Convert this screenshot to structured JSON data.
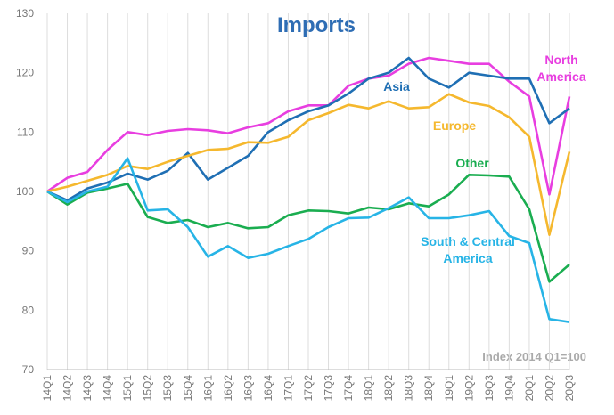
{
  "chart_data": {
    "type": "line",
    "title": "Imports",
    "annotation": "Index 2014 Q1=100",
    "categories": [
      "14Q1",
      "14Q2",
      "14Q3",
      "14Q4",
      "15Q1",
      "15Q2",
      "15Q3",
      "15Q4",
      "16Q1",
      "16Q2",
      "16Q3",
      "16Q4",
      "17Q1",
      "17Q2",
      "17Q3",
      "17Q4",
      "18Q1",
      "18Q2",
      "18Q3",
      "18Q4",
      "19Q1",
      "19Q2",
      "19Q3",
      "19Q4",
      "20Q1",
      "20Q2",
      "20Q3"
    ],
    "series": [
      {
        "name": "North America",
        "color": "#e83ee0",
        "values": [
          100,
          102.3,
          103.3,
          107,
          110,
          109.5,
          110.2,
          110.5,
          110.3,
          109.8,
          110.8,
          111.5,
          113.5,
          114.5,
          114.5,
          117.8,
          119,
          119.5,
          121.5,
          122.5,
          122,
          121.5,
          121.5,
          118.5,
          116,
          99.5,
          116
        ]
      },
      {
        "name": "Asia",
        "color": "#1f6fb4",
        "values": [
          100,
          98.5,
          100.5,
          101.5,
          103,
          102,
          103.5,
          106.5,
          102,
          104,
          106,
          110,
          112,
          113.5,
          114.5,
          116.5,
          119,
          120,
          122.5,
          119,
          117.5,
          120,
          119.5,
          119,
          119,
          111.5,
          114
        ]
      },
      {
        "name": "Europe",
        "color": "#f5b82e",
        "values": [
          100,
          100.8,
          101.8,
          102.8,
          104.3,
          103.8,
          105,
          106,
          107,
          107.2,
          108.3,
          108.2,
          109.2,
          112,
          113.2,
          114.6,
          114,
          115.2,
          114,
          114.2,
          116.4,
          115,
          114.4,
          112.5,
          109.2,
          92.7,
          106.7
        ]
      },
      {
        "name": "Other",
        "color": "#1aad50",
        "values": [
          100,
          97.8,
          99.8,
          100.5,
          101.3,
          95.7,
          94.7,
          95.2,
          94,
          94.7,
          93.8,
          94,
          96,
          96.8,
          96.7,
          96.3,
          97.3,
          97,
          98,
          97.5,
          99.5,
          102.8,
          102.7,
          102.5,
          97,
          84.8,
          87.7
        ]
      },
      {
        "name": "South & Central America",
        "color": "#27b4e6",
        "values": [
          100,
          98.2,
          100,
          100.8,
          105.6,
          96.8,
          97,
          94,
          89,
          90.8,
          88.8,
          89.5,
          90.8,
          92,
          94,
          95.5,
          95.6,
          97.2,
          99,
          95.5,
          95.5,
          96,
          96.7,
          92.5,
          91.3,
          78.5,
          78
        ]
      }
    ],
    "ylim": [
      70,
      130
    ],
    "yticks": [
      70,
      80,
      90,
      100,
      110,
      120,
      130
    ],
    "grid": "x"
  }
}
